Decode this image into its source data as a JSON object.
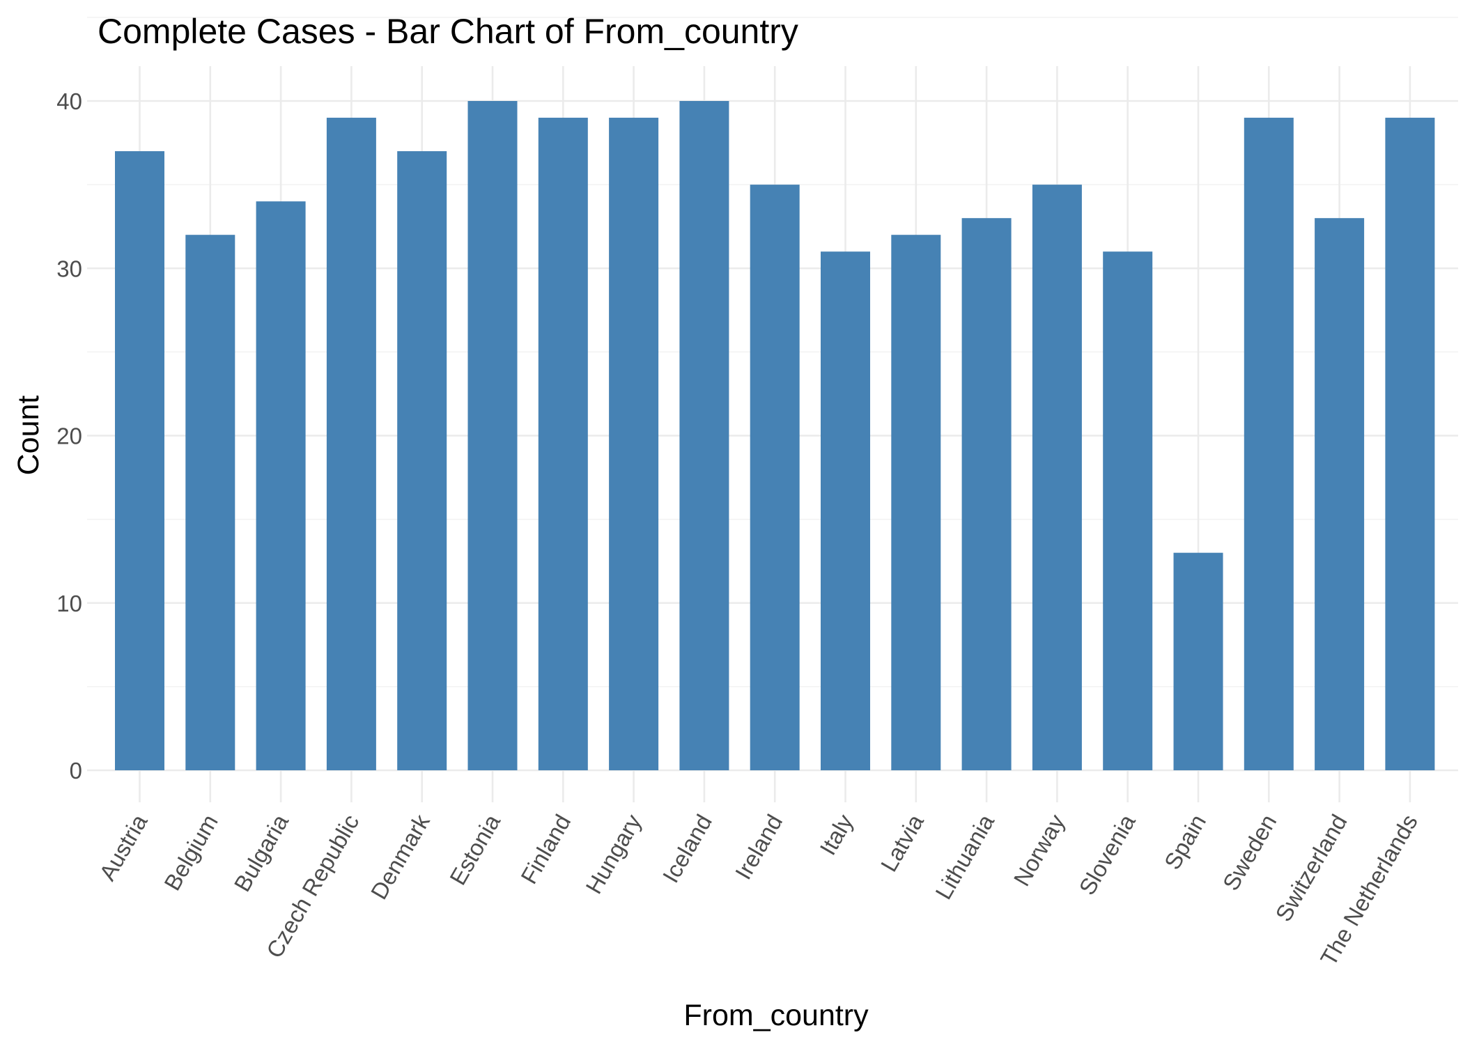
{
  "chart_data": {
    "type": "bar",
    "title": "Complete Cases - Bar Chart of  From_country",
    "xlabel": "From_country",
    "ylabel": "Count",
    "categories": [
      "Austria",
      "Belgium",
      "Bulgaria",
      "Czech Republic",
      "Denmark",
      "Estonia",
      "Finland",
      "Hungary",
      "Iceland",
      "Ireland",
      "Italy",
      "Latvia",
      "Lithuania",
      "Norway",
      "Slovenia",
      "Spain",
      "Sweden",
      "Switzerland",
      "The Netherlands"
    ],
    "values": [
      37,
      32,
      34,
      39,
      37,
      40,
      39,
      39,
      40,
      35,
      31,
      32,
      33,
      35,
      31,
      13,
      39,
      33,
      39
    ],
    "ylim": [
      0,
      40
    ],
    "yticks": [
      0,
      10,
      20,
      30,
      40
    ],
    "grid": true,
    "bar_color": "#4682b4"
  }
}
